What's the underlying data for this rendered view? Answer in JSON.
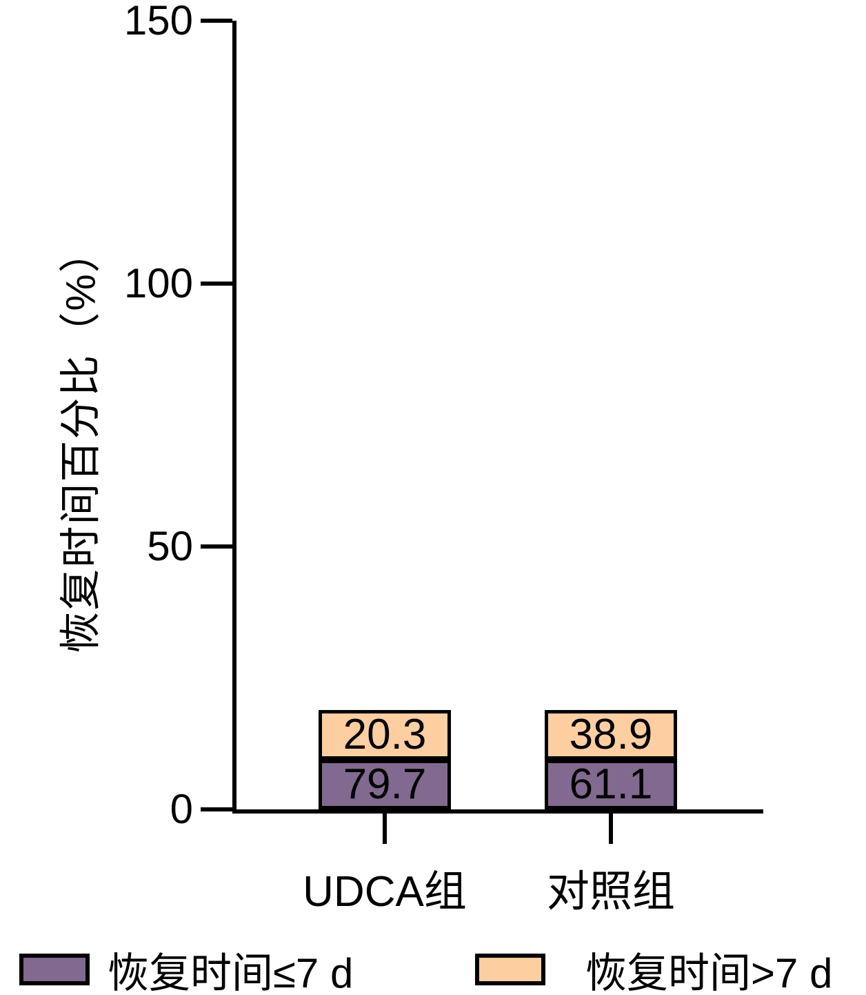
{
  "chart_data": {
    "type": "bar",
    "stacked": true,
    "title": "",
    "xlabel": "",
    "ylabel": "恢复时间百分比（%）",
    "ylim": [
      0,
      150
    ],
    "yticks": [
      "0",
      "50",
      "100",
      "150"
    ],
    "categories": [
      "UDCA组",
      "对照组"
    ],
    "series": [
      {
        "name": "恢复时间≤7 d",
        "color": "#82698F",
        "values": [
          79.7,
          61.1
        ]
      },
      {
        "name": "恢复时间>7 d",
        "color": "#FDCEA0",
        "values": [
          20.3,
          38.9
        ]
      }
    ],
    "value_labels_shown": true,
    "legend_position": "bottom",
    "grid": false,
    "axis_color": "#000000",
    "background_color": "#FFFFFF"
  }
}
